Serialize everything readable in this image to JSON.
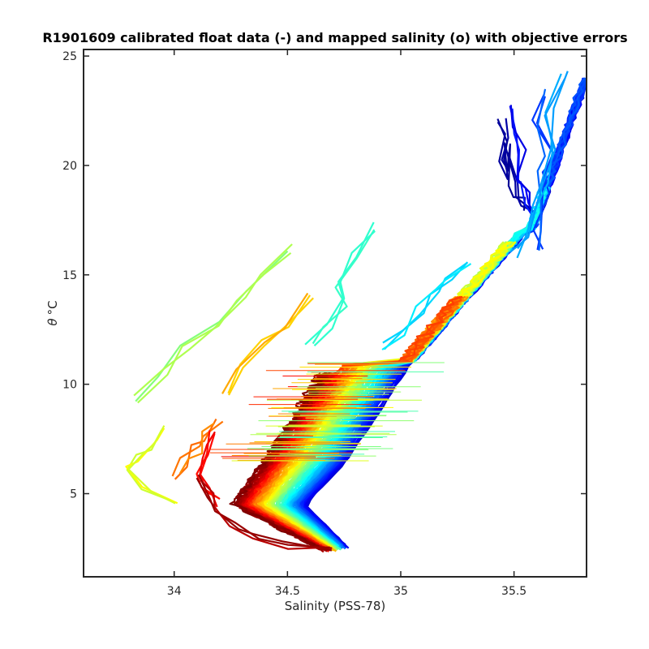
{
  "chart_data": {
    "type": "line",
    "title": "R1901609 calibrated float data (-) and mapped salinity (o) with objective errors",
    "xlabel": "Salinity (PSS-78)",
    "ylabel_symbol": "θ",
    "ylabel_unit": "°C",
    "xlim": [
      33.6,
      35.82
    ],
    "ylim": [
      1.2,
      25.3
    ],
    "xticks": [
      34,
      34.5,
      35,
      35.5
    ],
    "xtick_labels": [
      "34",
      "34.5",
      "35",
      "35.5"
    ],
    "yticks": [
      5,
      10,
      15,
      20,
      25
    ],
    "ytick_labels": [
      "5",
      "10",
      "15",
      "20",
      "25"
    ],
    "grid": false,
    "colormap": "jet",
    "colormap_stops": [
      "#00008f",
      "#0000ff",
      "#00ffff",
      "#ffff00",
      "#ff0000",
      "#800000"
    ],
    "series_count": 120,
    "series_groups": [
      {
        "color_index": 0.04,
        "x": [
          35.45,
          35.47,
          35.44,
          35.48,
          35.46,
          35.5,
          35.52,
          35.55,
          35.56
        ],
        "y": [
          22.2,
          21.2,
          20.4,
          19.6,
          20.8,
          19.2,
          18.6,
          18.3,
          17.8
        ]
      },
      {
        "color_index": 0.12,
        "x": [
          35.48,
          35.5,
          35.53,
          35.51,
          35.55,
          35.57,
          35.58
        ],
        "y": [
          22.8,
          21.6,
          20.6,
          19.4,
          19.0,
          18.2,
          17.6
        ]
      },
      {
        "color_index": 0.2,
        "x": [
          35.63,
          35.6,
          35.66,
          35.62,
          35.64,
          35.6,
          35.62
        ],
        "y": [
          23.4,
          21.9,
          20.6,
          19.5,
          18.6,
          17.2,
          16.2
        ]
      },
      {
        "color_index": 0.28,
        "x": [
          35.72,
          35.66,
          35.68,
          35.64,
          35.6,
          35.56,
          35.5
        ],
        "y": [
          24.2,
          22.5,
          20.8,
          19.2,
          18.0,
          16.8,
          16.0
        ]
      },
      {
        "color_index": 0.36,
        "x": [
          35.3,
          35.22,
          35.15,
          35.08,
          35.0,
          34.94
        ],
        "y": [
          15.6,
          15.0,
          14.2,
          13.4,
          12.4,
          11.8
        ]
      },
      {
        "color_index": 0.44,
        "x": [
          34.88,
          34.8,
          34.72,
          34.75,
          34.68,
          34.6
        ],
        "y": [
          17.2,
          15.8,
          14.6,
          13.8,
          12.6,
          11.9
        ]
      },
      {
        "color_index": 0.52,
        "x": [
          34.5,
          34.4,
          34.3,
          34.18,
          34.05,
          33.95,
          33.84
        ],
        "y": [
          16.2,
          15.0,
          14.0,
          12.8,
          11.8,
          10.5,
          9.3
        ]
      },
      {
        "color_index": 0.6,
        "x": [
          33.96,
          33.92,
          33.85,
          33.8,
          33.88,
          34.02
        ],
        "y": [
          8.0,
          7.2,
          6.6,
          6.0,
          5.2,
          4.6
        ]
      },
      {
        "color_index": 0.68,
        "x": [
          34.6,
          34.5,
          34.38,
          34.28,
          34.22
        ],
        "y": [
          14.0,
          12.6,
          11.8,
          10.8,
          9.6
        ]
      },
      {
        "color_index": 0.76,
        "x": [
          34.2,
          34.14,
          34.1,
          34.05,
          34.0
        ],
        "y": [
          8.2,
          7.6,
          7.0,
          6.4,
          5.8
        ]
      },
      {
        "color_index": 0.86,
        "x": [
          34.18,
          34.15,
          34.12,
          34.1,
          34.14,
          34.2
        ],
        "y": [
          7.8,
          7.0,
          6.4,
          5.8,
          5.2,
          4.6
        ]
      },
      {
        "color_index": 0.96,
        "x": [
          34.12,
          34.16,
          34.2,
          34.26,
          34.35,
          34.5,
          34.68
        ],
        "y": [
          5.8,
          5.0,
          4.2,
          3.6,
          3.1,
          2.7,
          2.3
        ]
      }
    ]
  }
}
